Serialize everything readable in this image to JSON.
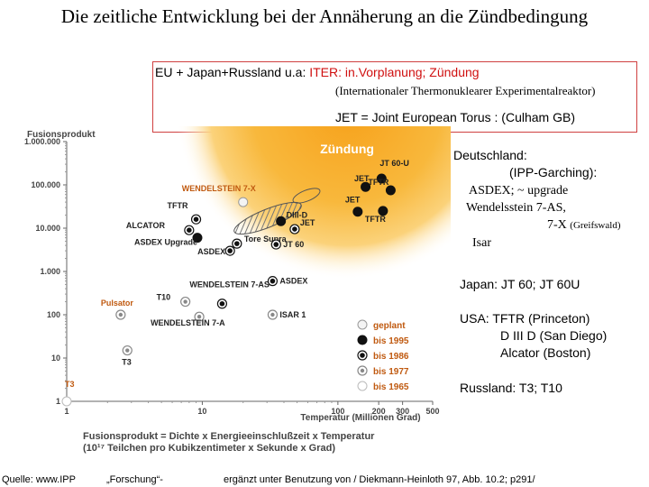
{
  "title": "Die zeitliche Entwicklung bei der Annäherung an die Zündbedingung",
  "infobox": {
    "line1_prefix": "EU + Japan+Russland u.a:",
    "line1_highlight": "ITER: in.Vorplanung; Zündung",
    "line2": "(Internationaler Thermonuklearer Experimentalreaktor)",
    "line3": "JET = Joint European Torus : (Culham GB)"
  },
  "countries": {
    "de_title": "Deutschland:",
    "de_line1": "(IPP-Garching):",
    "de_line2": "ASDEX; ~ upgrade",
    "de_line3": "Wendelsstein 7-AS,",
    "de_line4": "7-X",
    "de_line4_small": "(Greifswald)",
    "de_line5": "Isar",
    "japan": "Japan: JT 60; JT 60U",
    "usa_line1": "USA: TFTR (Princeton)",
    "usa_line2": "D III D (San Diego)",
    "usa_line3": "Alcator (Boston)",
    "russia": "Russland: T3; T10"
  },
  "footer": {
    "source": "Quelle: www.IPP",
    "forschung": "„Forschung“-",
    "supplement": "ergänzt unter Benutzung von / Diekmann-Heinloth 97, Abb. 10.2; p291/"
  },
  "colors": {
    "ignition_core": "#f7a11a",
    "ignition_glow": "#fde9a6",
    "label_orange": "#c05a10",
    "ignition_text": "#ffffff"
  },
  "chart_data": {
    "type": "scatter",
    "y_axis_title": "Fusionsprodukt",
    "x_axis_title": "Temperatur (Millionen Grad)",
    "caption_line1": "Fusionsprodukt = Dichte x Energieeinschlußzeit x Temperatur",
    "caption_line2": "(10¹⁷ Teilchen pro Kubikzentimeter x Sekunde x Grad)",
    "x_scale": "log",
    "y_scale": "log",
    "xlim": [
      1,
      500
    ],
    "ylim": [
      1,
      1000000
    ],
    "x_ticks": [
      "1",
      "10",
      "100",
      "200",
      "300",
      "500"
    ],
    "x_tick_values": [
      1,
      10,
      100,
      200,
      300,
      500
    ],
    "y_ticks": [
      "1",
      "10",
      "100",
      "1.000",
      "10.000",
      "100.000",
      "1.000.000"
    ],
    "y_tick_values": [
      1,
      10,
      100,
      1000,
      10000,
      100000,
      1000000
    ],
    "region_label": "Zündung",
    "legend": [
      {
        "status": "geplant",
        "label": "geplant"
      },
      {
        "status": "1995",
        "label": "bis 1995"
      },
      {
        "status": "1986",
        "label": "bis 1986"
      },
      {
        "status": "1977",
        "label": "bis 1977"
      },
      {
        "status": "1965",
        "label": "bis 1965"
      }
    ],
    "points": [
      {
        "label": "TFTR",
        "x": 9,
        "y": 16000,
        "status": "1986",
        "color": "dark"
      },
      {
        "label": "ALCATOR",
        "x": 8,
        "y": 9000,
        "status": "1986",
        "color": "dark"
      },
      {
        "label": "ASDEX Upgrade",
        "x": 9.2,
        "y": 6000,
        "status": "1995",
        "color": "dark"
      },
      {
        "label": "ASDEX",
        "x": 16,
        "y": 3000,
        "status": "1986",
        "color": "dark"
      },
      {
        "label": "Tore Supra",
        "x": 18,
        "y": 4400,
        "status": "1986",
        "color": "dark"
      },
      {
        "label": "JT 60",
        "x": 35,
        "y": 4200,
        "status": "1986",
        "color": "dark"
      },
      {
        "label": "JET",
        "x": 48,
        "y": 9500,
        "status": "1986",
        "color": "dark"
      },
      {
        "label": "DIII-D",
        "x": 38,
        "y": 14500,
        "status": "1995",
        "color": "dark"
      },
      {
        "label": "JET",
        "x": 160,
        "y": 90000,
        "status": "1995",
        "color": "dark"
      },
      {
        "label": "JT 60-U",
        "x": 210,
        "y": 140000,
        "status": "1995",
        "color": "dark"
      },
      {
        "label": "TFTR",
        "x": 245,
        "y": 75000,
        "status": "1995",
        "color": "dark"
      },
      {
        "label": "TFTR",
        "x": 215,
        "y": 25000,
        "status": "1995",
        "color": "dark"
      },
      {
        "label": "JET",
        "x": 140,
        "y": 24000,
        "status": "1995",
        "color": "dark"
      },
      {
        "label": "WENDELSTEIN 7-X",
        "x": 20,
        "y": 40000,
        "status": "geplant",
        "color": "orange"
      },
      {
        "label": "WENDELSTEIN 7-AS",
        "x": 14,
        "y": 180,
        "status": "1986",
        "color": "dark"
      },
      {
        "label": "WENDELSTEIN 7-A",
        "x": 9.5,
        "y": 90,
        "status": "1977",
        "color": "dark"
      },
      {
        "label": "T10",
        "x": 7.5,
        "y": 200,
        "status": "1977",
        "color": "dark"
      },
      {
        "label": "ASDEX",
        "x": 33,
        "y": 600,
        "status": "1986",
        "color": "dark"
      },
      {
        "label": "ISAR 1",
        "x": 33,
        "y": 100,
        "status": "1977",
        "color": "dark"
      },
      {
        "label": "Pulsator",
        "x": 2.5,
        "y": 100,
        "status": "1977",
        "color": "orange"
      },
      {
        "label": "T3",
        "x": 2.8,
        "y": 15,
        "status": "1977",
        "color": "dark"
      },
      {
        "label": "T3",
        "x": 1,
        "y": 1,
        "status": "1965",
        "color": "orange"
      }
    ]
  }
}
